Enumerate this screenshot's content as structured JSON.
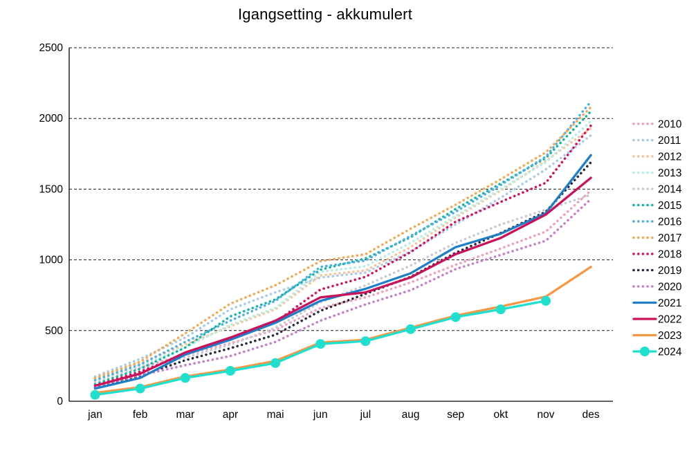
{
  "title": "Igangsetting - akkumulert",
  "chart_data": {
    "type": "line",
    "title": "Igangsetting - akkumulert",
    "x": [
      "jan",
      "feb",
      "mar",
      "apr",
      "mai",
      "jun",
      "jul",
      "aug",
      "sep",
      "okt",
      "nov",
      "des"
    ],
    "xlabel": "",
    "ylabel": "",
    "ylim": [
      0,
      2500
    ],
    "y_ticks": [
      0,
      500,
      1000,
      1500,
      2000,
      2500
    ],
    "grid": "horizontal-dashed",
    "legend_position": "right",
    "series": [
      {
        "name": "2010",
        "color": "#F49FB6",
        "style": "dotted",
        "values": [
          150,
          240,
          330,
          410,
          505,
          660,
          735,
          840,
          965,
          1080,
          1200,
          1490
        ]
      },
      {
        "name": "2011",
        "color": "#A8CBEC",
        "style": "dotted",
        "values": [
          175,
          300,
          450,
          650,
          770,
          875,
          910,
          1060,
          1250,
          1440,
          1640,
          1880
        ]
      },
      {
        "name": "2012",
        "color": "#FAC397",
        "style": "dotted",
        "values": [
          160,
          270,
          400,
          530,
          650,
          890,
          925,
          1090,
          1300,
          1490,
          1700,
          1930
        ]
      },
      {
        "name": "2013",
        "color": "#B4EFE6",
        "style": "dotted",
        "values": [
          140,
          250,
          380,
          540,
          660,
          915,
          955,
          1120,
          1310,
          1500,
          1690,
          1980
        ]
      },
      {
        "name": "2014",
        "color": "#C7CAD5",
        "style": "dotted",
        "values": [
          130,
          230,
          310,
          400,
          520,
          700,
          820,
          960,
          1120,
          1250,
          1355,
          1460
        ]
      },
      {
        "name": "2015",
        "color": "#14B5A2",
        "style": "dotted",
        "values": [
          120,
          230,
          380,
          600,
          720,
          930,
          1010,
          1160,
          1360,
          1540,
          1720,
          2050
        ]
      },
      {
        "name": "2016",
        "color": "#4CB0E8",
        "style": "dotted",
        "values": [
          150,
          260,
          420,
          570,
          710,
          950,
          995,
          1170,
          1340,
          1530,
          1730,
          2120
        ]
      },
      {
        "name": "2017",
        "color": "#F8A751",
        "style": "dotted",
        "values": [
          165,
          280,
          480,
          690,
          820,
          990,
          1040,
          1220,
          1390,
          1570,
          1760,
          2080
        ]
      },
      {
        "name": "2018",
        "color": "#D2135C",
        "style": "dotted",
        "values": [
          110,
          210,
          330,
          450,
          560,
          790,
          880,
          1055,
          1270,
          1410,
          1545,
          1950
        ]
      },
      {
        "name": "2019",
        "color": "#2A2A40",
        "style": "dotted",
        "values": [
          95,
          180,
          290,
          375,
          470,
          640,
          760,
          880,
          1050,
          1190,
          1340,
          1690
        ]
      },
      {
        "name": "2020",
        "color": "#C77FC7",
        "style": "dotted",
        "values": [
          105,
          185,
          255,
          320,
          420,
          570,
          685,
          785,
          935,
          1035,
          1135,
          1430
        ]
      },
      {
        "name": "2021",
        "color": "#1E7EC8",
        "style": "solid",
        "values": [
          90,
          165,
          330,
          435,
          555,
          710,
          795,
          905,
          1090,
          1185,
          1330,
          1740
        ]
      },
      {
        "name": "2022",
        "color": "#C9125A",
        "style": "solid",
        "values": [
          110,
          195,
          345,
          450,
          570,
          735,
          770,
          875,
          1040,
          1155,
          1320,
          1580
        ]
      },
      {
        "name": "2023",
        "color": "#F79745",
        "style": "solid",
        "values": [
          60,
          100,
          175,
          225,
          285,
          415,
          435,
          520,
          605,
          670,
          740,
          950
        ]
      },
      {
        "name": "2024",
        "color": "#1FE0CE",
        "style": "solid-markers",
        "values": [
          45,
          90,
          165,
          215,
          270,
          405,
          425,
          510,
          595,
          650,
          710,
          null
        ]
      }
    ]
  },
  "colors": {
    "background": "#FFFFFF",
    "text": "#000000",
    "gridline": "#1A1A1A",
    "axis": "#000000"
  }
}
